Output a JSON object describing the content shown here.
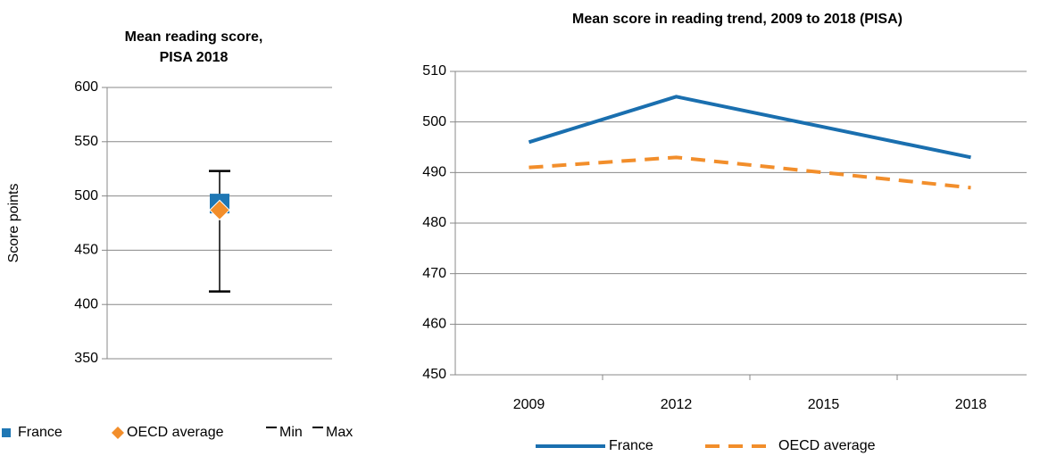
{
  "chart_data": [
    {
      "type": "range",
      "title": [
        "Mean reading score,",
        "PISA 2018"
      ],
      "y_label": "Score points",
      "series": [
        {
          "name": "France",
          "color": "#1f77b4",
          "values": [
            493
          ]
        },
        {
          "name": "OECD average",
          "color": "#f28e2b",
          "values": [
            487
          ]
        },
        {
          "name": "Min",
          "color": "#000000",
          "values": [
            412
          ]
        },
        {
          "name": "Max",
          "color": "#000000",
          "values": [
            523
          ]
        }
      ],
      "ylim": [
        350,
        600
      ],
      "yticks": [
        350,
        400,
        450,
        500,
        550,
        600
      ],
      "grid": true
    },
    {
      "type": "line",
      "title": "Mean score in reading trend, 2009 to 2018 (PISA)",
      "categories": [
        "2009",
        "2012",
        "2015",
        "2018"
      ],
      "series": [
        {
          "name": "France",
          "color": "#1a6faf",
          "values": [
            496,
            505,
            499,
            493
          ]
        },
        {
          "name": "OECD average",
          "color": "#f28e2b",
          "values": [
            491,
            493,
            490,
            487
          ],
          "dashed": true
        }
      ],
      "ylim": [
        450,
        510
      ],
      "yticks": [
        450,
        460,
        470,
        480,
        490,
        500,
        510
      ],
      "grid": true
    }
  ]
}
